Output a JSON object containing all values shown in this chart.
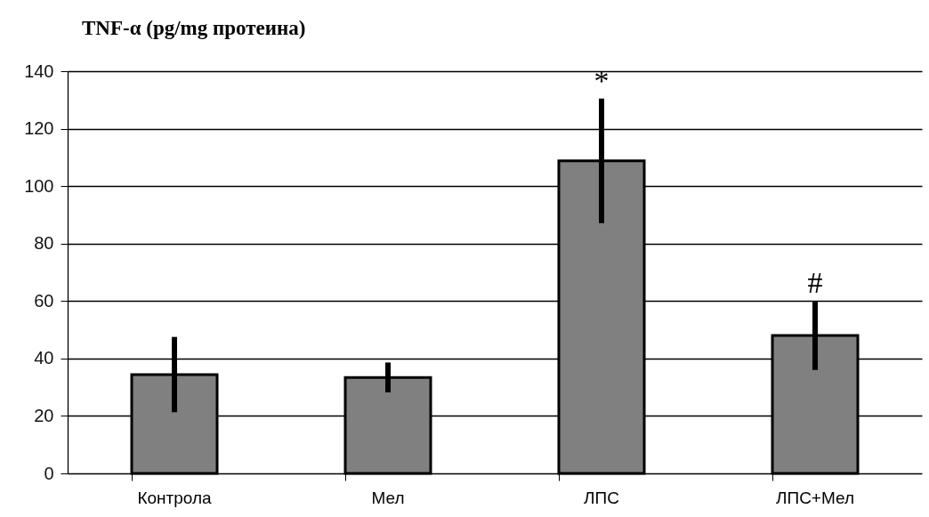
{
  "chart_data": {
    "type": "bar",
    "title": "TNF-α (pg/mg протеина)",
    "categories": [
      "Контрола",
      "Мел",
      "ЛПС",
      "ЛПС+Мел"
    ],
    "values": [
      34.4,
      33.4,
      108.8,
      48.0
    ],
    "errors": [
      13.1,
      5.2,
      21.7,
      12.0
    ],
    "color": "#808080",
    "ylim": [
      0,
      140
    ],
    "yticks": [
      0,
      20,
      40,
      60,
      80,
      100,
      120,
      140
    ],
    "grid": "y",
    "annotations": [
      {
        "text": "*",
        "x": "ЛПС",
        "y": 130.5
      },
      {
        "text": "#",
        "x": "ЛПС+Мел",
        "y": 60
      }
    ]
  }
}
